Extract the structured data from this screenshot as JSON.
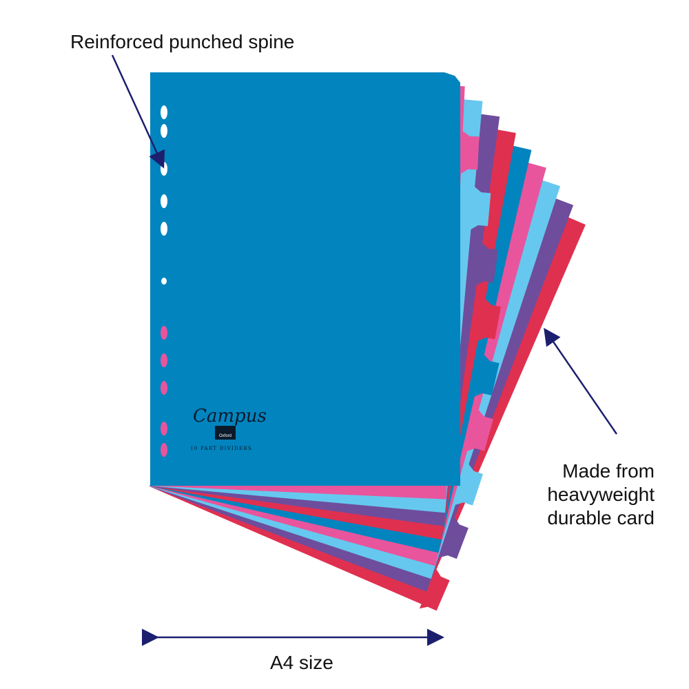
{
  "callouts": {
    "spine": "Reinforced punched spine",
    "material": [
      "Made from",
      "heavyweight",
      "durable card"
    ],
    "size": "A4 size"
  },
  "logo": {
    "brand": "Campus",
    "badge": "Oxford",
    "subtitle": "10 PART DIVIDERS"
  },
  "colors": {
    "sheets_front_to_back": [
      "#0284bf",
      "#e8559c",
      "#66c8ee",
      "#6e4d9c",
      "#e0304f",
      "#0284bf",
      "#e8559c",
      "#66c8ee",
      "#6e4d9c",
      "#e0304f"
    ],
    "arrow": "#1b1f6e"
  }
}
